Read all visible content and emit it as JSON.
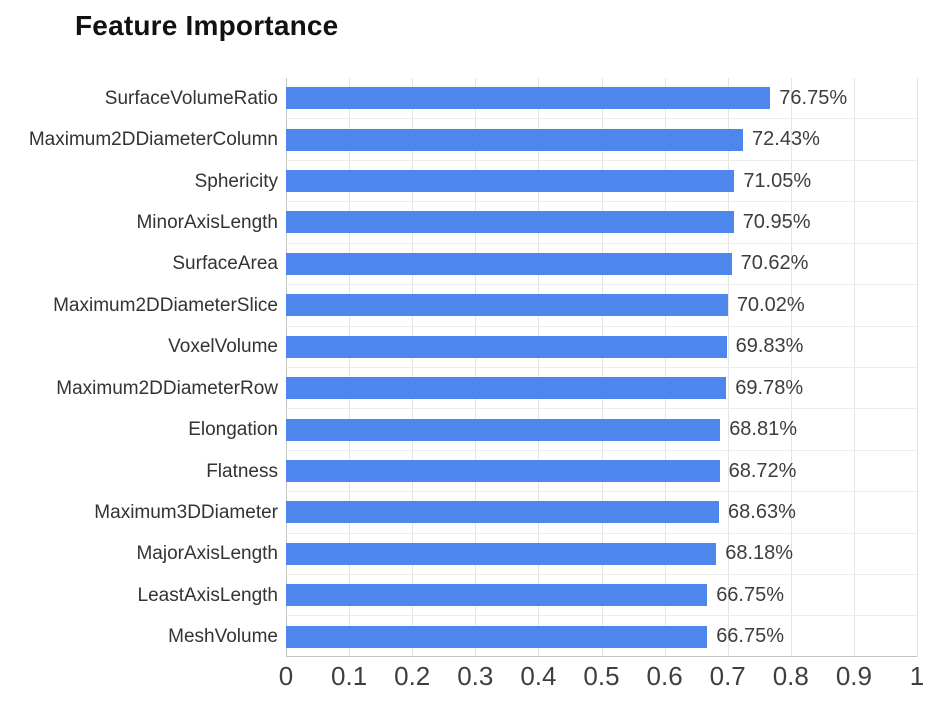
{
  "title": "Feature Importance",
  "colors": {
    "bar": "#4d86ec",
    "title_text": "#111111",
    "category_text": "#333333",
    "value_text": "#3d3d3d",
    "axis_text": "#3f3f3f",
    "gridline": "#e4e4e4",
    "axis_line": "#c4c4c4",
    "background": "#ffffff"
  },
  "chart_data": {
    "type": "bar",
    "orientation": "horizontal",
    "title": "Feature Importance",
    "categories": [
      "SurfaceVolumeRatio",
      "Maximum2DDiameterColumn",
      "Sphericity",
      "MinorAxisLength",
      "SurfaceArea",
      "Maximum2DDiameterSlice",
      "VoxelVolume",
      "Maximum2DDiameterRow",
      "Elongation",
      "Flatness",
      "Maximum3DDiameter",
      "MajorAxisLength",
      "LeastAxisLength",
      "MeshVolume"
    ],
    "values": [
      0.7675,
      0.7243,
      0.7105,
      0.7095,
      0.7062,
      0.7002,
      0.6983,
      0.6978,
      0.6881,
      0.6872,
      0.6863,
      0.6818,
      0.6675,
      0.6675
    ],
    "value_labels": [
      "76.75%",
      "72.43%",
      "71.05%",
      "70.95%",
      "70.62%",
      "70.02%",
      "69.83%",
      "69.78%",
      "68.81%",
      "68.72%",
      "68.63%",
      "68.18%",
      "66.75%",
      "66.75%"
    ],
    "xlabel": "",
    "ylabel": "",
    "xlim": [
      0,
      1
    ],
    "x_ticks": [
      "0",
      "0.1",
      "0.2",
      "0.3",
      "0.4",
      "0.5",
      "0.6",
      "0.7",
      "0.8",
      "0.9",
      "1"
    ],
    "grid": "vertical",
    "legend": "none"
  }
}
